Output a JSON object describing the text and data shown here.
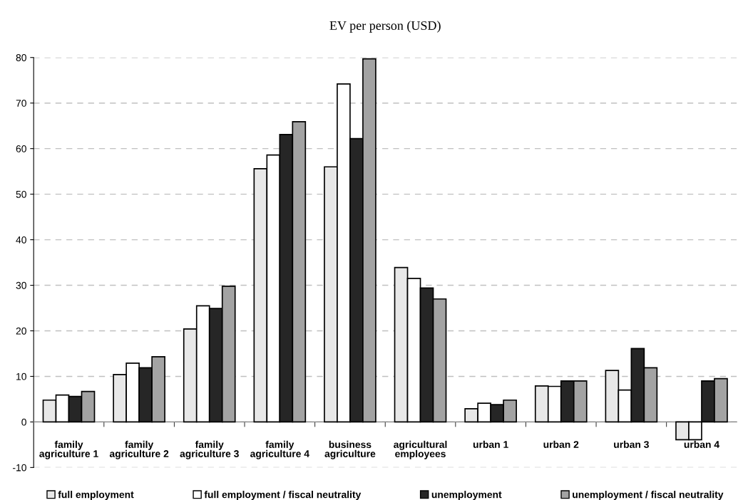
{
  "chart_data": {
    "type": "bar",
    "title": "EV per person (USD)",
    "categories": [
      "family\nagriculture 1",
      "family\nagriculture 2",
      "family\nagriculture 3",
      "family\nagriculture 4",
      "business\nagriculture",
      "agricultural\nemployees",
      "urban 1",
      "urban 2",
      "urban 3",
      "urban 4"
    ],
    "series": [
      {
        "name": "full employment",
        "color": "#e8e8e8",
        "values": [
          4.8,
          10.4,
          20.4,
          55.6,
          56.0,
          33.9,
          2.9,
          7.9,
          11.3,
          -3.9
        ]
      },
      {
        "name": "full employment / fiscal neutrality",
        "color": "#ffffff",
        "values": [
          5.9,
          12.9,
          25.5,
          58.6,
          74.2,
          31.5,
          4.1,
          7.8,
          7.0,
          -3.9
        ]
      },
      {
        "name": "unemployment",
        "color": "#262626",
        "values": [
          5.6,
          11.9,
          24.9,
          63.1,
          62.2,
          29.4,
          3.8,
          9.0,
          16.1,
          9.0
        ]
      },
      {
        "name": "unemployment / fiscal neutrality",
        "color": "#a3a3a3",
        "values": [
          6.7,
          14.3,
          29.8,
          65.9,
          79.7,
          27.0,
          4.8,
          9.0,
          11.9,
          9.5
        ]
      }
    ],
    "ylim": [
      -10,
      80
    ],
    "yticks": [
      -10,
      0,
      10,
      20,
      30,
      40,
      50,
      60,
      70,
      80
    ],
    "grid": "y",
    "legend": "bottom"
  }
}
